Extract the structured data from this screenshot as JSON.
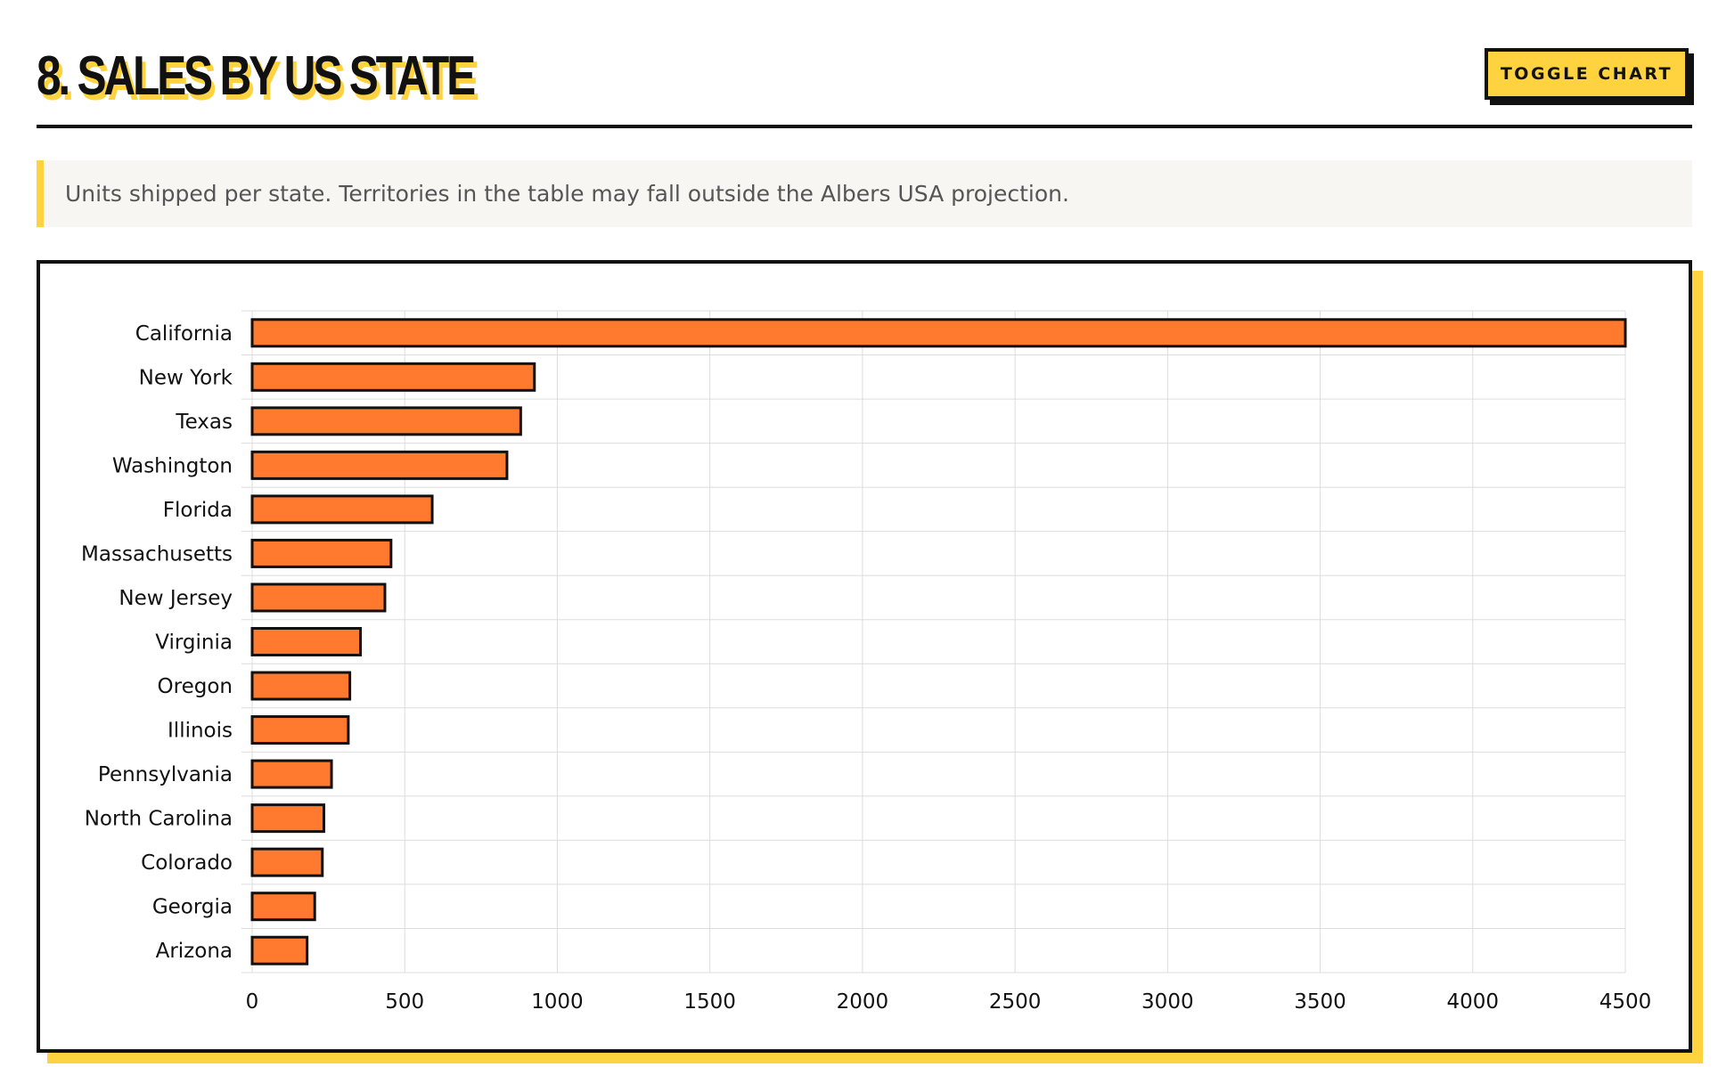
{
  "header": {
    "title": "8. SALES BY US STATE",
    "toggle_label": "TOGGLE CHART"
  },
  "note": {
    "text": "Units shipped per state. Territories in the table may fall outside the Albers USA projection."
  },
  "colors": {
    "accent": "#ffd23f",
    "bar_fill": "#ff7a2f",
    "bar_stroke": "#111111",
    "grid": "#dddddd"
  },
  "chart_data": {
    "type": "bar",
    "orientation": "horizontal",
    "categories": [
      "California",
      "New York",
      "Texas",
      "Washington",
      "Florida",
      "Massachusetts",
      "New Jersey",
      "Virginia",
      "Oregon",
      "Illinois",
      "Pennsylvania",
      "North Carolina",
      "Colorado",
      "Georgia",
      "Arizona"
    ],
    "values": [
      4500,
      925,
      880,
      835,
      590,
      455,
      435,
      355,
      320,
      315,
      260,
      235,
      230,
      205,
      180
    ],
    "xlim": [
      0,
      4500
    ],
    "x_ticks": [
      "0",
      "500",
      "1000",
      "1500",
      "2000",
      "2500",
      "3000",
      "3500",
      "4000",
      "4500"
    ],
    "grid": true,
    "legend": "none"
  }
}
